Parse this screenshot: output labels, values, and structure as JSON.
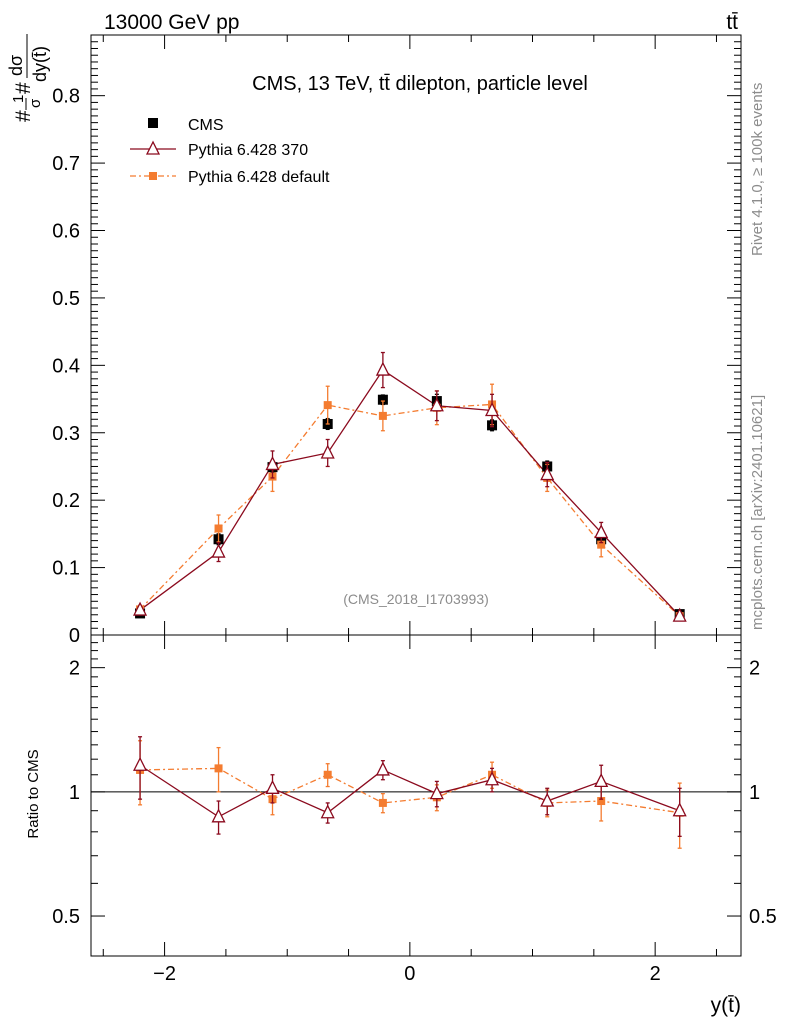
{
  "header": {
    "energy_label": "13000 GeV pp",
    "process_label": "tt̄"
  },
  "side_labels": {
    "rivet": "Rivet 4.1.0, ≥ 100k events",
    "mcplots": "mcplots.cern.ch [arXiv:2401.10621]"
  },
  "colors": {
    "cms": "#000000",
    "pythia370": "#8b0a1e",
    "pythia_default": "#f47c30"
  },
  "chart_data": [
    {
      "type": "line",
      "title": "CMS, 13 TeV, tt̄ dilepton, particle level",
      "analysis_tag": "(CMS_2018_I1703993)",
      "xlabel": "y(t̄)",
      "ylabel_num": "dσ",
      "ylabel_den": "dy(t̄)",
      "ylabel_prefix": "#",
      "ylabel_frac_num": "1",
      "ylabel_frac_den": "σ",
      "ylabel_mid": "#",
      "xlim": [
        -2.6,
        2.7
      ],
      "ylim": [
        0,
        0.89
      ],
      "x_ticks": [
        -2,
        0,
        2
      ],
      "x_tick_labels": [
        "−2",
        "0",
        "2"
      ],
      "y_ticks": [
        0,
        0.1,
        0.2,
        0.3,
        0.4,
        0.5,
        0.6,
        0.7,
        0.8
      ],
      "y_tick_labels": [
        "0",
        "0.1",
        "0.2",
        "0.3",
        "0.4",
        "0.5",
        "0.6",
        "0.7",
        "0.8"
      ],
      "x": [
        -2.2,
        -1.56,
        -1.12,
        -0.67,
        -0.22,
        0.22,
        0.67,
        1.12,
        1.56,
        2.2
      ],
      "legend": [
        "CMS",
        "Pythia 6.428 370",
        "Pythia 6.428 default"
      ],
      "series": [
        {
          "name": "CMS",
          "values": [
            0.032,
            0.142,
            0.249,
            0.313,
            0.349,
            0.347,
            0.311,
            0.25,
            0.142,
            0.031
          ],
          "errors": [
            0.004,
            0.008,
            0.008,
            0.008,
            0.007,
            0.01,
            0.008,
            0.008,
            0.008,
            0.004
          ]
        },
        {
          "name": "Pythia 6.428 370",
          "values": [
            0.037,
            0.123,
            0.253,
            0.27,
            0.393,
            0.34,
            0.333,
            0.238,
            0.152,
            0.028
          ],
          "errors": [
            0.005,
            0.014,
            0.02,
            0.02,
            0.026,
            0.022,
            0.024,
            0.018,
            0.015,
            0.004
          ]
        },
        {
          "name": "Pythia 6.428 default",
          "values": [
            0.038,
            0.158,
            0.235,
            0.341,
            0.325,
            0.337,
            0.342,
            0.233,
            0.134,
            0.028
          ],
          "errors": [
            0.006,
            0.02,
            0.022,
            0.028,
            0.022,
            0.025,
            0.03,
            0.02,
            0.018,
            0.005
          ]
        }
      ]
    },
    {
      "type": "line",
      "ylabel": "Ratio to CMS",
      "xlim": [
        -2.6,
        2.7
      ],
      "ylim": [
        0.4,
        2.4
      ],
      "y_scale": "log",
      "y_ticks": [
        0.5,
        1,
        2
      ],
      "y_tick_labels": [
        "0.5",
        "1",
        "2"
      ],
      "x": [
        -2.2,
        -1.56,
        -1.12,
        -0.67,
        -0.22,
        0.22,
        0.67,
        1.12,
        1.56,
        2.2
      ],
      "series": [
        {
          "name": "Pythia 6.428 370",
          "values": [
            1.16,
            0.87,
            1.02,
            0.89,
            1.13,
            0.99,
            1.07,
            0.95,
            1.06,
            0.9
          ],
          "errors": [
            0.2,
            0.08,
            0.08,
            0.05,
            0.06,
            0.07,
            0.07,
            0.07,
            0.1,
            0.12
          ]
        },
        {
          "name": "Pythia 6.428 default",
          "values": [
            1.13,
            1.14,
            0.96,
            1.1,
            0.94,
            0.97,
            1.1,
            0.94,
            0.95,
            0.89
          ],
          "errors": [
            0.2,
            0.14,
            0.08,
            0.07,
            0.05,
            0.07,
            0.08,
            0.07,
            0.1,
            0.16
          ]
        }
      ]
    }
  ]
}
